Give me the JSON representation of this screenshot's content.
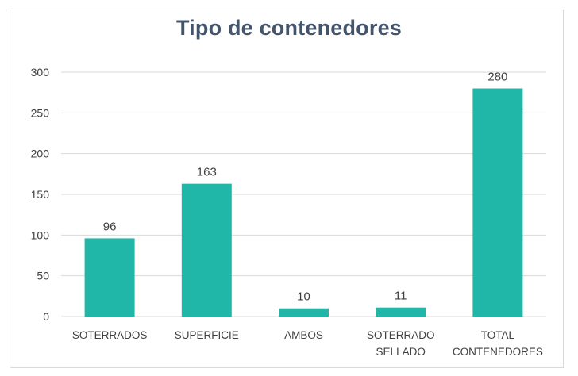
{
  "chart_data": {
    "type": "bar",
    "title": "Tipo de contenedores",
    "categories": [
      [
        "SOTERRADOS"
      ],
      [
        "SUPERFICIE"
      ],
      [
        "AMBOS"
      ],
      [
        "SOTERRADO",
        "SELLADO"
      ],
      [
        "TOTAL",
        "CONTENEDORES"
      ]
    ],
    "values": [
      96,
      163,
      10,
      11,
      280
    ],
    "data_labels": [
      "96",
      "163",
      "10",
      "11",
      "280"
    ],
    "y_ticks": [
      "0",
      "50",
      "100",
      "150",
      "200",
      "250",
      "300"
    ],
    "ylim": [
      0,
      300
    ],
    "xlabel": "",
    "ylabel": "",
    "grid": true,
    "legend": "none",
    "colors": {
      "bar": "#20b7a9",
      "grid": "#d9d9d9",
      "text": "#404040",
      "title": "#44546a"
    }
  }
}
